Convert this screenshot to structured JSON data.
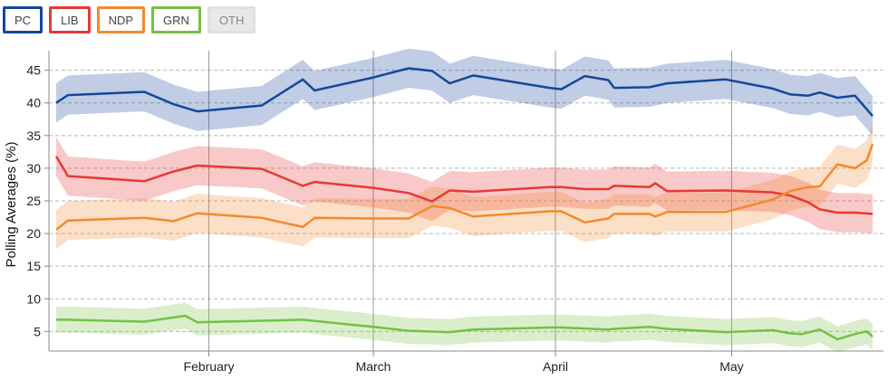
{
  "legend": [
    {
      "key": "PC",
      "label": "PC",
      "color": "#15479a",
      "active": true
    },
    {
      "key": "LIB",
      "label": "LIB",
      "color": "#e53935",
      "active": true
    },
    {
      "key": "NDP",
      "label": "NDP",
      "color": "#f28a2e",
      "active": true
    },
    {
      "key": "GRN",
      "label": "GRN",
      "color": "#76c043",
      "active": true
    },
    {
      "key": "OTH",
      "label": "OTH",
      "color": "#cccccc",
      "active": false
    }
  ],
  "chart_data": {
    "type": "line",
    "ylabel": "Polling Averages (%)",
    "ylim": [
      2,
      48
    ],
    "yticks": [
      5,
      10,
      15,
      20,
      25,
      30,
      35,
      40,
      45
    ],
    "xlim": [
      "2022-01-06",
      "2022-05-25"
    ],
    "xticks": [
      {
        "date": "2022-02-01",
        "label": "February"
      },
      {
        "date": "2022-03-01",
        "label": "March"
      },
      {
        "date": "2022-04-01",
        "label": "April"
      },
      {
        "date": "2022-05-01",
        "label": "May"
      }
    ],
    "grid": {
      "horizontal": "dashed",
      "vertical": "solid"
    },
    "series": [
      {
        "name": "PC",
        "color": "#15479a",
        "band": 3,
        "points": [
          [
            "2022-01-06",
            40.0
          ],
          [
            "2022-01-08",
            41.2
          ],
          [
            "2022-01-21",
            41.7
          ],
          [
            "2022-01-26",
            39.8
          ],
          [
            "2022-01-30",
            38.7
          ],
          [
            "2022-02-10",
            39.6
          ],
          [
            "2022-02-17",
            43.6
          ],
          [
            "2022-02-19",
            41.9
          ],
          [
            "2022-03-01",
            43.9
          ],
          [
            "2022-03-07",
            45.3
          ],
          [
            "2022-03-11",
            44.9
          ],
          [
            "2022-03-14",
            43.0
          ],
          [
            "2022-03-18",
            44.2
          ],
          [
            "2022-03-31",
            42.3
          ],
          [
            "2022-04-02",
            42.1
          ],
          [
            "2022-04-06",
            44.1
          ],
          [
            "2022-04-10",
            43.5
          ],
          [
            "2022-04-11",
            42.3
          ],
          [
            "2022-04-17",
            42.4
          ],
          [
            "2022-04-20",
            43.0
          ],
          [
            "2022-04-30",
            43.6
          ],
          [
            "2022-05-08",
            42.2
          ],
          [
            "2022-05-11",
            41.3
          ],
          [
            "2022-05-14",
            41.1
          ],
          [
            "2022-05-16",
            41.6
          ],
          [
            "2022-05-19",
            40.8
          ],
          [
            "2022-05-22",
            41.1
          ],
          [
            "2022-05-25",
            38.0
          ]
        ]
      },
      {
        "name": "LIB",
        "color": "#e53935",
        "band": 3,
        "points": [
          [
            "2022-01-06",
            31.8
          ],
          [
            "2022-01-08",
            28.8
          ],
          [
            "2022-01-21",
            28.0
          ],
          [
            "2022-01-26",
            29.5
          ],
          [
            "2022-01-30",
            30.4
          ],
          [
            "2022-02-10",
            29.9
          ],
          [
            "2022-02-17",
            27.3
          ],
          [
            "2022-02-19",
            27.9
          ],
          [
            "2022-03-01",
            27.0
          ],
          [
            "2022-03-07",
            26.2
          ],
          [
            "2022-03-11",
            24.9
          ],
          [
            "2022-03-14",
            26.6
          ],
          [
            "2022-03-18",
            26.4
          ],
          [
            "2022-03-31",
            27.1
          ],
          [
            "2022-04-02",
            27.1
          ],
          [
            "2022-04-06",
            26.8
          ],
          [
            "2022-04-10",
            26.8
          ],
          [
            "2022-04-11",
            27.3
          ],
          [
            "2022-04-17",
            27.1
          ],
          [
            "2022-04-18",
            27.7
          ],
          [
            "2022-04-20",
            26.5
          ],
          [
            "2022-04-30",
            26.6
          ],
          [
            "2022-05-08",
            26.3
          ],
          [
            "2022-05-11",
            25.8
          ],
          [
            "2022-05-14",
            24.8
          ],
          [
            "2022-05-16",
            23.7
          ],
          [
            "2022-05-19",
            23.2
          ],
          [
            "2022-05-22",
            23.2
          ],
          [
            "2022-05-25",
            23.0
          ]
        ]
      },
      {
        "name": "NDP",
        "color": "#f28a2e",
        "band": 3,
        "points": [
          [
            "2022-01-06",
            20.6
          ],
          [
            "2022-01-08",
            22.0
          ],
          [
            "2022-01-21",
            22.4
          ],
          [
            "2022-01-26",
            21.9
          ],
          [
            "2022-01-30",
            23.1
          ],
          [
            "2022-02-10",
            22.4
          ],
          [
            "2022-02-17",
            21.0
          ],
          [
            "2022-02-19",
            22.4
          ],
          [
            "2022-03-01",
            22.3
          ],
          [
            "2022-03-07",
            22.3
          ],
          [
            "2022-03-11",
            24.2
          ],
          [
            "2022-03-14",
            23.9
          ],
          [
            "2022-03-18",
            22.6
          ],
          [
            "2022-03-31",
            23.4
          ],
          [
            "2022-04-02",
            23.4
          ],
          [
            "2022-04-06",
            21.7
          ],
          [
            "2022-04-10",
            22.3
          ],
          [
            "2022-04-11",
            23.0
          ],
          [
            "2022-04-17",
            23.0
          ],
          [
            "2022-04-18",
            22.6
          ],
          [
            "2022-04-20",
            23.3
          ],
          [
            "2022-04-30",
            23.3
          ],
          [
            "2022-05-08",
            25.2
          ],
          [
            "2022-05-11",
            26.5
          ],
          [
            "2022-05-14",
            27.1
          ],
          [
            "2022-05-16",
            27.2
          ],
          [
            "2022-05-19",
            30.6
          ],
          [
            "2022-05-22",
            30.0
          ],
          [
            "2022-05-24",
            31.2
          ],
          [
            "2022-05-25",
            33.7
          ]
        ]
      },
      {
        "name": "GRN",
        "color": "#76c043",
        "band": 2,
        "points": [
          [
            "2022-01-06",
            6.8
          ],
          [
            "2022-01-08",
            6.8
          ],
          [
            "2022-01-21",
            6.5
          ],
          [
            "2022-01-28",
            7.4
          ],
          [
            "2022-01-30",
            6.4
          ],
          [
            "2022-02-17",
            6.8
          ],
          [
            "2022-02-19",
            6.6
          ],
          [
            "2022-03-01",
            5.7
          ],
          [
            "2022-03-07",
            5.1
          ],
          [
            "2022-03-14",
            4.9
          ],
          [
            "2022-03-18",
            5.3
          ],
          [
            "2022-03-31",
            5.6
          ],
          [
            "2022-04-02",
            5.6
          ],
          [
            "2022-04-10",
            5.3
          ],
          [
            "2022-04-11",
            5.4
          ],
          [
            "2022-04-17",
            5.7
          ],
          [
            "2022-04-20",
            5.4
          ],
          [
            "2022-04-30",
            4.9
          ],
          [
            "2022-05-08",
            5.2
          ],
          [
            "2022-05-11",
            4.7
          ],
          [
            "2022-05-13",
            4.6
          ],
          [
            "2022-05-16",
            5.3
          ],
          [
            "2022-05-19",
            3.8
          ],
          [
            "2022-05-22",
            4.6
          ],
          [
            "2022-05-24",
            5.0
          ],
          [
            "2022-05-25",
            4.2
          ]
        ]
      }
    ]
  }
}
